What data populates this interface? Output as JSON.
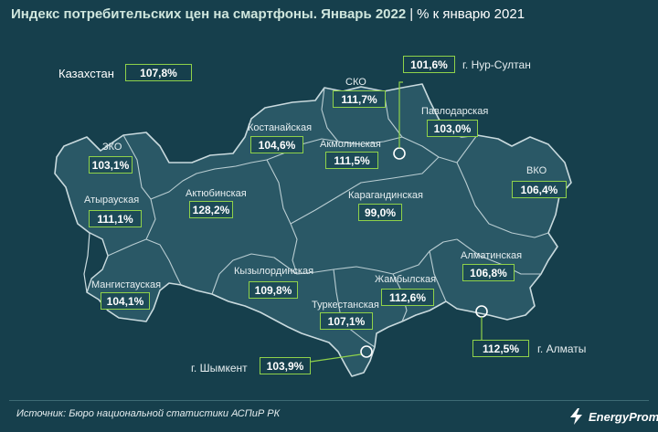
{
  "title": {
    "main": "Индекс потребительских цен на смартфоны. Январь 2022",
    "separator": "|",
    "subtitle": "% к январю 2021"
  },
  "country": {
    "label": "Казахстан",
    "value": "107,8%"
  },
  "regions": [
    {
      "id": "zko",
      "name": "ЗКО",
      "value": "103,1%"
    },
    {
      "id": "atyrau",
      "name": "Атырауская",
      "value": "111,1%"
    },
    {
      "id": "mangistau",
      "name": "Мангистауская",
      "value": "104,1%"
    },
    {
      "id": "aktobe",
      "name": "Актюбинская",
      "value": "128,2%"
    },
    {
      "id": "kostanay",
      "name": "Костанайская",
      "value": "104,6%"
    },
    {
      "id": "sko",
      "name": "СКО",
      "value": "111,7%"
    },
    {
      "id": "akmola",
      "name": "Акмолинская",
      "value": "111,5%"
    },
    {
      "id": "pavlodar",
      "name": "Павлодарская",
      "value": "103,0%"
    },
    {
      "id": "vko",
      "name": "ВКО",
      "value": "106,4%"
    },
    {
      "id": "karaganda",
      "name": "Карагандинская",
      "value": "99,0%"
    },
    {
      "id": "kyzylorda",
      "name": "Кызылординская",
      "value": "109,8%"
    },
    {
      "id": "turkestan",
      "name": "Туркестанская",
      "value": "107,1%"
    },
    {
      "id": "zhambyl",
      "name": "Жамбылская",
      "value": "112,6%"
    },
    {
      "id": "almaty_region",
      "name": "Алматинская",
      "value": "106,8%"
    }
  ],
  "cities": [
    {
      "id": "nur_sultan",
      "name": "г. Нур-Султан",
      "value": "101,6%"
    },
    {
      "id": "almaty",
      "name": "г. Алматы",
      "value": "112,5%"
    },
    {
      "id": "shymkent",
      "name": "г. Шымкент",
      "value": "103,9%"
    }
  ],
  "source": "Источник: Бюро национальной статистики АСПиР РК",
  "logo": {
    "text": "EnergyProm"
  },
  "colors": {
    "background": "#163f4c",
    "map_fill": "#2a5866",
    "region_border": "#b9cdd2",
    "value_border": "#8fd24a",
    "title": "#cfe6dd"
  }
}
